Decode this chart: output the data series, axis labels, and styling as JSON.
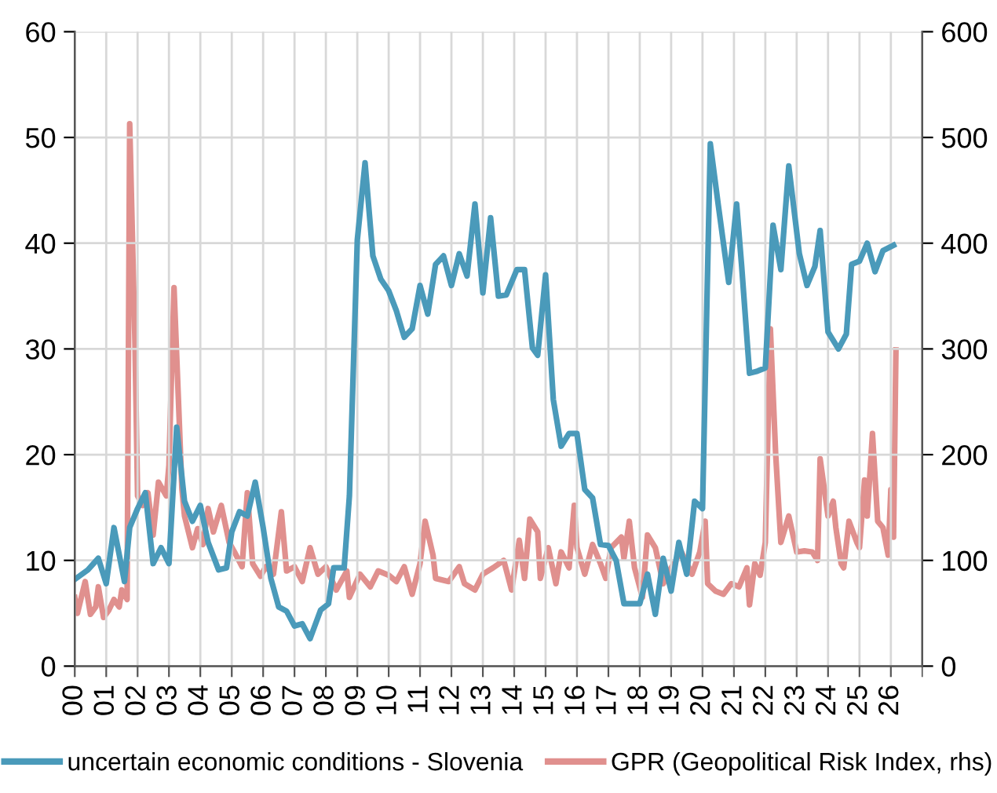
{
  "chart_data": {
    "type": "line",
    "legend": "bottom",
    "grid": true,
    "xlim": [
      "2000",
      "2027"
    ],
    "ylim": [
      0,
      60
    ],
    "yticks": [
      0,
      10,
      20,
      30,
      40,
      50,
      60
    ],
    "y2lim": [
      0,
      600
    ],
    "y2ticks": [
      0,
      100,
      200,
      300,
      400,
      500,
      600
    ],
    "xticks": [
      {
        "value": "2000",
        "label": "00"
      },
      {
        "value": "2001",
        "label": "01"
      },
      {
        "value": "2002",
        "label": "02"
      },
      {
        "value": "2003",
        "label": "03"
      },
      {
        "value": "2004",
        "label": "04"
      },
      {
        "value": "2005",
        "label": "05"
      },
      {
        "value": "2006",
        "label": "06"
      },
      {
        "value": "2007",
        "label": "07"
      },
      {
        "value": "2008",
        "label": "08"
      },
      {
        "value": "2009",
        "label": "09"
      },
      {
        "value": "2010",
        "label": "10"
      },
      {
        "value": "2011",
        "label": "11"
      },
      {
        "value": "2012",
        "label": "12"
      },
      {
        "value": "2013",
        "label": "13"
      },
      {
        "value": "2014",
        "label": "14"
      },
      {
        "value": "2015",
        "label": "15"
      },
      {
        "value": "2016",
        "label": "16"
      },
      {
        "value": "2017",
        "label": "17"
      },
      {
        "value": "2018",
        "label": "18"
      },
      {
        "value": "2019",
        "label": "19"
      },
      {
        "value": "2020",
        "label": "20"
      },
      {
        "value": "2021",
        "label": "21"
      },
      {
        "value": "2022",
        "label": "22"
      },
      {
        "value": "2023",
        "label": "23"
      },
      {
        "value": "2024",
        "label": "24"
      },
      {
        "value": "2025",
        "label": "25"
      },
      {
        "value": "2026",
        "label": "26"
      }
    ],
    "series": [
      {
        "name": "uncertain economic conditions - Slovenia",
        "color": "#4a9aba",
        "x": [
          "2000-01",
          "2000-06",
          "2000-10",
          "2001-01",
          "2001-04",
          "2001-08",
          "2001-10",
          "2002-01",
          "2002-04",
          "2002-07",
          "2002-10",
          "2003-01",
          "2003-04",
          "2003-07",
          "2003-10",
          "2004-01",
          "2004-04",
          "2004-08",
          "2004-11",
          "2005-01",
          "2005-04",
          "2005-07",
          "2005-10",
          "2006-01",
          "2006-04",
          "2006-07",
          "2006-10",
          "2007-01",
          "2007-04",
          "2007-07",
          "2007-11",
          "2008-02",
          "2008-04",
          "2008-08",
          "2008-10",
          "2009-01",
          "2009-04",
          "2009-07",
          "2009-10",
          "2010-01",
          "2010-04",
          "2010-07",
          "2010-10",
          "2011-01",
          "2011-04",
          "2011-07",
          "2011-10",
          "2012-01",
          "2012-04",
          "2012-07",
          "2012-10",
          "2013-01",
          "2013-04",
          "2013-07",
          "2013-10",
          "2014-02",
          "2014-05",
          "2014-08",
          "2014-10",
          "2015-01",
          "2015-04",
          "2015-07",
          "2015-10",
          "2016-01",
          "2016-04",
          "2016-07",
          "2016-10",
          "2017-01",
          "2017-04",
          "2017-07",
          "2017-10",
          "2018-01",
          "2018-04",
          "2018-07",
          "2018-10",
          "2019-01",
          "2019-04",
          "2019-07",
          "2019-10",
          "2020-01",
          "2020-04",
          "2020-07",
          "2020-11",
          "2021-02",
          "2021-04",
          "2021-07",
          "2021-10",
          "2022-01",
          "2022-04",
          "2022-07",
          "2022-10",
          "2023-02",
          "2023-05",
          "2023-08",
          "2023-10",
          "2024-01",
          "2024-05",
          "2024-08",
          "2024-10",
          "2025-01",
          "2025-04",
          "2025-07",
          "2025-10",
          "2026-02"
        ],
        "values": [
          8.2,
          9.1,
          10.2,
          7.8,
          13.1,
          8.0,
          13.1,
          14.9,
          16.4,
          9.7,
          11.2,
          9.7,
          22.6,
          15.6,
          13.7,
          15.2,
          11.7,
          9.1,
          9.3,
          12.7,
          14.6,
          14.2,
          17.4,
          13.1,
          8.3,
          5.6,
          5.2,
          3.8,
          4.0,
          2.6,
          5.3,
          5.9,
          9.3,
          9.3,
          16.1,
          40.3,
          47.6,
          38.8,
          36.6,
          35.5,
          33.6,
          31.1,
          31.9,
          36.0,
          33.3,
          38.0,
          38.8,
          36.0,
          39.0,
          36.9,
          43.7,
          35.3,
          42.4,
          35.0,
          35.1,
          37.5,
          37.5,
          30.1,
          29.4,
          37.0,
          25.2,
          20.8,
          22.0,
          22.0,
          16.7,
          15.9,
          11.5,
          11.4,
          10.0,
          5.9,
          5.9,
          5.9,
          8.7,
          4.9,
          10.2,
          7.1,
          11.7,
          8.7,
          15.6,
          14.9,
          49.4,
          43.7,
          36.3,
          43.7,
          37.8,
          27.7,
          27.9,
          28.2,
          41.7,
          37.5,
          47.3,
          39.0,
          36.0,
          37.8,
          41.2,
          31.6,
          30.0,
          31.4,
          38.0,
          38.3,
          40.0,
          37.3,
          39.3,
          39.8
        ]
      },
      {
        "name": "GPR (Geopolitical Risk Index, rhs)",
        "color": "#e0908e",
        "axis": "y2",
        "x": [
          "2000-01",
          "2000-02",
          "2000-05",
          "2000-07",
          "2000-09",
          "2000-10",
          "2000-12",
          "2001-02",
          "2001-04",
          "2001-06",
          "2001-07",
          "2001-09",
          "2001-10",
          "2001-12",
          "2002-01",
          "2002-03",
          "2002-05",
          "2002-07",
          "2002-09",
          "2002-12",
          "2003-01",
          "2003-03",
          "2003-06",
          "2003-07",
          "2003-10",
          "2003-12",
          "2004-02",
          "2004-04",
          "2004-06",
          "2004-09",
          "2004-12",
          "2005-02",
          "2005-05",
          "2005-07",
          "2005-09",
          "2005-12",
          "2006-02",
          "2006-05",
          "2006-08",
          "2006-10",
          "2007-01",
          "2007-04",
          "2007-07",
          "2007-10",
          "2008-01",
          "2008-05",
          "2008-09",
          "2008-10",
          "2009-02",
          "2009-06",
          "2009-09",
          "2010-01",
          "2010-04",
          "2010-07",
          "2010-10",
          "2011-01",
          "2011-03",
          "2011-06",
          "2011-07",
          "2011-12",
          "2012-04",
          "2012-06",
          "2012-10",
          "2013-01",
          "2013-05",
          "2013-09",
          "2013-12",
          "2014-03",
          "2014-05",
          "2014-07",
          "2014-10",
          "2014-11",
          "2015-02",
          "2015-05",
          "2015-07",
          "2015-10",
          "2015-12",
          "2016-01",
          "2016-04",
          "2016-07",
          "2016-10",
          "2016-12",
          "2017-02",
          "2017-06",
          "2017-07",
          "2017-09",
          "2017-11",
          "2018-02",
          "2018-04",
          "2018-07",
          "2018-10",
          "2019-01",
          "2019-05",
          "2019-09",
          "2019-12",
          "2020-02",
          "2020-03",
          "2020-06",
          "2020-09",
          "2020-12",
          "2021-03",
          "2021-06",
          "2021-07",
          "2021-09",
          "2021-11",
          "2022-01",
          "2022-03",
          "2022-05",
          "2022-07",
          "2022-10",
          "2023-01",
          "2023-04",
          "2023-07",
          "2023-09",
          "2023-10",
          "2024-01",
          "2024-03",
          "2024-04",
          "2024-06",
          "2024-07",
          "2024-09",
          "2024-12",
          "2025-01",
          "2025-03",
          "2025-04",
          "2025-06",
          "2025-08",
          "2025-10",
          "2025-12",
          "2026-01",
          "2026-02",
          "2026-03"
        ],
        "values": [
          65,
          50,
          80,
          49,
          56,
          75,
          46,
          53,
          63,
          56,
          72,
          63,
          513,
          308,
          161,
          152,
          164,
          124,
          174,
          161,
          190,
          358,
          167,
          142,
          112,
          130,
          115,
          149,
          127,
          152,
          117,
          108,
          94,
          164,
          97,
          85,
          94,
          87,
          146,
          90,
          94,
          80,
          112,
          87,
          94,
          72,
          90,
          65,
          87,
          75,
          90,
          86,
          80,
          94,
          68,
          97,
          137,
          105,
          83,
          80,
          94,
          78,
          72,
          87,
          93,
          100,
          72,
          119,
          83,
          139,
          127,
          83,
          112,
          78,
          108,
          93,
          152,
          112,
          87,
          115,
          97,
          83,
          112,
          122,
          102,
          137,
          93,
          65,
          124,
          112,
          78,
          93,
          108,
          87,
          108,
          137,
          78,
          71,
          68,
          78,
          75,
          93,
          58,
          97,
          86,
          117,
          319,
          201,
          117,
          142,
          108,
          109,
          108,
          100,
          196,
          142,
          156,
          131,
          97,
          93,
          137,
          117,
          112,
          176,
          142,
          220,
          137,
          131,
          105,
          167,
          122,
          299
        ]
      }
    ]
  }
}
